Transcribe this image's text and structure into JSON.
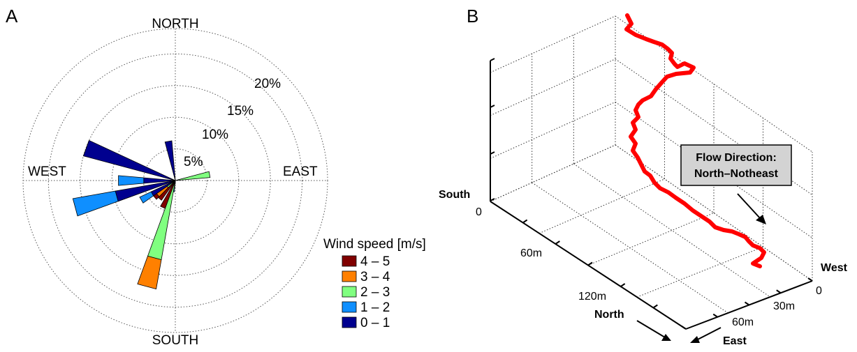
{
  "panel_a_label": "A",
  "panel_b_label": "B",
  "chart_data": [
    {
      "type": "wind-rose",
      "compass": {
        "north": "NORTH",
        "south": "SOUTH",
        "east": "EAST",
        "west": "WEST"
      },
      "radial_ticks": [
        {
          "value": 5,
          "label": "5%"
        },
        {
          "value": 10,
          "label": "10%"
        },
        {
          "value": 15,
          "label": "15%"
        },
        {
          "value": 20,
          "label": "20%"
        }
      ],
      "rmax": 24,
      "legend_title": "Wind speed [m/s]",
      "speed_bins": [
        {
          "label": "0 – 1",
          "color": "#00008f"
        },
        {
          "label": "1 – 2",
          "color": "#0f8fff"
        },
        {
          "label": "2 – 3",
          "color": "#80ff80"
        },
        {
          "label": "3 – 4",
          "color": "#ff8000"
        },
        {
          "label": "4 – 5",
          "color": "#800000"
        }
      ],
      "sector_width_deg": 10,
      "sectors": [
        {
          "dir": 80,
          "values": [
            0,
            0,
            5.5,
            0,
            0
          ]
        },
        {
          "dir": 185,
          "values": [
            0,
            0.5,
            0,
            0,
            0
          ]
        },
        {
          "dir": 190,
          "values": [
            0,
            1.8,
            0,
            0,
            0
          ]
        },
        {
          "dir": 195,
          "values": [
            0,
            0.2,
            12.5,
            4.7,
            0
          ]
        },
        {
          "dir": 205,
          "values": [
            0,
            0,
            0,
            0.3,
            4.4
          ]
        },
        {
          "dir": 220,
          "values": [
            0,
            0,
            0,
            0,
            3.8
          ]
        },
        {
          "dir": 230,
          "values": [
            0.4,
            0,
            1.2,
            2.0,
            0.6
          ]
        },
        {
          "dir": 240,
          "values": [
            4.2,
            2.0,
            0,
            0,
            0
          ]
        },
        {
          "dir": 255,
          "values": [
            9.6,
            6.8,
            0,
            0,
            0
          ]
        },
        {
          "dir": 270,
          "values": [
            5.0,
            4.0,
            0,
            0,
            0
          ]
        },
        {
          "dir": 290,
          "values": [
            15.0,
            0,
            0,
            0,
            0
          ]
        },
        {
          "dir": 350,
          "values": [
            6.3,
            0,
            0,
            0,
            0
          ]
        }
      ]
    },
    {
      "type": "3d-line",
      "series_color": "#ff0000",
      "annotation": "Flow Direction:\nNorth–Notheast",
      "south_label": "South",
      "north_label": "North",
      "west_label": "West",
      "east_label": "East",
      "south_tick": "0",
      "north_ticks": [
        "60m",
        "120m"
      ],
      "west_ticks": [
        "0",
        "30m",
        "60m"
      ]
    }
  ]
}
